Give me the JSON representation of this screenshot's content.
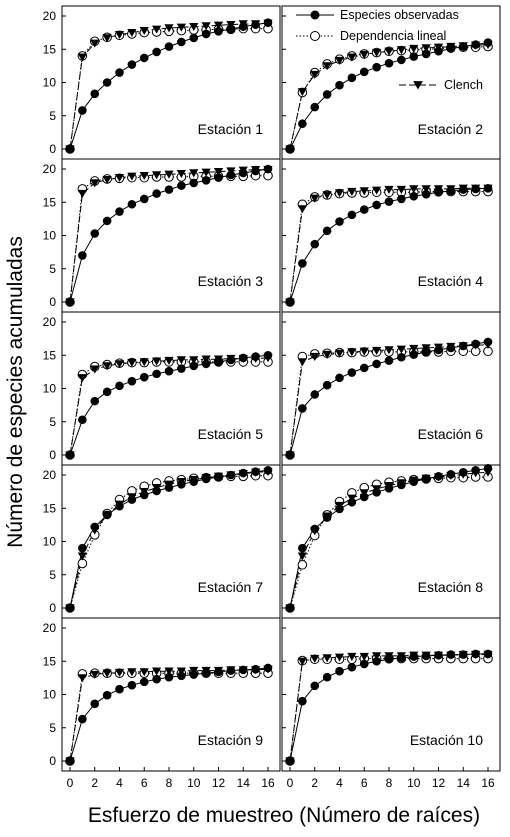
{
  "chart_data": {
    "type": "line",
    "xlabel": "Esfuerzo de muestreo (Número de raíces)",
    "ylabel": "Número de especies acumuladas",
    "xlim": [
      0,
      16
    ],
    "ylim": [
      0,
      20
    ],
    "xticks": [
      0,
      2,
      4,
      6,
      8,
      10,
      12,
      14,
      16
    ],
    "yticks": [
      0,
      5,
      10,
      15,
      20
    ],
    "x": [
      0,
      1,
      2,
      3,
      4,
      5,
      6,
      7,
      8,
      9,
      10,
      11,
      12,
      13,
      14,
      15,
      16
    ],
    "legend": {
      "placement": "top-right",
      "entries": [
        {
          "name": "Especies observadas",
          "marker": "filled-circle",
          "line": "solid"
        },
        {
          "name": "Dependencia lineal",
          "marker": "open-circle",
          "line": "dotted"
        },
        {
          "name": "Clench",
          "marker": "filled-triangle-down",
          "line": "dashed"
        }
      ]
    },
    "panels": [
      {
        "label": "Estación 1",
        "observed": [
          0,
          5.8,
          8.3,
          10.0,
          11.5,
          12.7,
          13.7,
          14.6,
          15.4,
          16.1,
          16.7,
          17.3,
          17.7,
          18.0,
          18.4,
          18.7,
          19.0
        ],
        "linear": [
          0,
          14.0,
          16.2,
          16.8,
          17.1,
          17.3,
          17.5,
          17.6,
          17.7,
          17.8,
          17.9,
          17.9,
          18.0,
          18.0,
          18.1,
          18.1,
          18.1
        ],
        "clench": [
          0,
          13.8,
          15.9,
          16.7,
          17.2,
          17.5,
          17.8,
          18.0,
          18.2,
          18.3,
          18.4,
          18.5,
          18.6,
          18.7,
          18.8,
          18.8,
          18.9
        ]
      },
      {
        "label": "Estación 2",
        "observed": [
          0,
          3.8,
          6.3,
          8.2,
          9.6,
          10.7,
          11.6,
          12.3,
          12.9,
          13.4,
          13.9,
          14.3,
          14.7,
          15.1,
          15.4,
          15.7,
          16.0
        ],
        "linear": [
          0,
          8.5,
          11.5,
          12.8,
          13.5,
          14.0,
          14.3,
          14.5,
          14.7,
          14.8,
          14.9,
          15.0,
          15.1,
          15.2,
          15.3,
          15.3,
          15.4
        ],
        "clench": [
          0,
          8.6,
          11.2,
          12.5,
          13.3,
          13.8,
          14.2,
          14.5,
          14.7,
          14.9,
          15.1,
          15.2,
          15.3,
          15.4,
          15.5,
          15.6,
          15.7
        ]
      },
      {
        "label": "Estación 3",
        "observed": [
          0,
          7.0,
          10.3,
          12.2,
          13.6,
          14.7,
          15.5,
          16.3,
          16.9,
          17.5,
          17.9,
          18.3,
          18.7,
          19.1,
          19.4,
          19.7,
          20.0
        ],
        "linear": [
          0,
          17.0,
          18.2,
          18.5,
          18.6,
          18.7,
          18.7,
          18.8,
          18.8,
          18.8,
          18.9,
          18.9,
          18.9,
          18.9,
          18.9,
          19.0,
          19.0
        ],
        "clench": [
          0,
          16.3,
          17.9,
          18.4,
          18.7,
          18.9,
          19.0,
          19.1,
          19.2,
          19.3,
          19.4,
          19.5,
          19.6,
          19.7,
          19.8,
          19.9,
          19.9
        ]
      },
      {
        "label": "Estación 4",
        "observed": [
          0,
          5.8,
          8.7,
          10.7,
          12.1,
          13.1,
          13.9,
          14.6,
          15.1,
          15.5,
          15.9,
          16.2,
          16.5,
          16.7,
          16.9,
          17.0,
          17.1
        ],
        "linear": [
          0,
          14.7,
          15.8,
          16.1,
          16.3,
          16.4,
          16.4,
          16.5,
          16.5,
          16.5,
          16.5,
          16.6,
          16.6,
          16.6,
          16.6,
          16.6,
          16.6
        ],
        "clench": [
          0,
          14.0,
          15.6,
          16.1,
          16.4,
          16.6,
          16.7,
          16.8,
          16.9,
          16.9,
          17.0,
          17.0,
          17.0,
          17.0,
          17.1,
          17.1,
          17.1
        ]
      },
      {
        "label": "Estación 5",
        "observed": [
          0,
          5.3,
          8.1,
          9.5,
          10.4,
          11.1,
          11.7,
          12.2,
          12.6,
          13.0,
          13.4,
          13.7,
          14.0,
          14.3,
          14.6,
          14.8,
          15.0
        ],
        "linear": [
          0,
          12.1,
          13.3,
          13.6,
          13.8,
          13.9,
          13.9,
          14.0,
          14.0,
          14.0,
          14.0,
          14.0,
          14.0,
          14.0,
          14.0,
          14.0,
          14.0
        ],
        "clench": [
          0,
          11.6,
          12.9,
          13.4,
          13.7,
          13.9,
          14.0,
          14.1,
          14.2,
          14.3,
          14.3,
          14.4,
          14.4,
          14.5,
          14.5,
          14.5,
          14.6
        ]
      },
      {
        "label": "Estación 6",
        "observed": [
          0,
          7.0,
          9.1,
          10.5,
          11.6,
          12.4,
          13.1,
          13.7,
          14.2,
          14.7,
          15.1,
          15.5,
          15.8,
          16.1,
          16.4,
          16.7,
          17.0
        ],
        "linear": [
          0,
          14.8,
          15.2,
          15.3,
          15.4,
          15.4,
          15.5,
          15.5,
          15.5,
          15.5,
          15.5,
          15.5,
          15.5,
          15.6,
          15.6,
          15.6,
          15.6
        ],
        "clench": [
          0,
          14.0,
          14.8,
          15.1,
          15.3,
          15.5,
          15.6,
          15.7,
          15.8,
          15.9,
          16.0,
          16.1,
          16.2,
          16.3,
          16.4,
          16.5,
          16.6
        ]
      },
      {
        "label": "Estación 7",
        "observed": [
          0,
          9.0,
          12.2,
          14.0,
          15.3,
          16.3,
          17.0,
          17.6,
          18.1,
          18.6,
          19.0,
          19.4,
          19.7,
          20.0,
          20.3,
          20.5,
          20.7
        ],
        "linear": [
          0,
          6.7,
          11.0,
          14.2,
          16.3,
          17.6,
          18.3,
          18.8,
          19.1,
          19.3,
          19.5,
          19.6,
          19.7,
          19.8,
          19.8,
          19.9,
          19.9
        ],
        "clench": [
          0,
          7.8,
          11.7,
          14.0,
          15.6,
          16.7,
          17.5,
          18.1,
          18.6,
          19.0,
          19.3,
          19.6,
          19.8,
          20.0,
          20.2,
          20.4,
          20.5
        ]
      },
      {
        "label": "Estación 8",
        "observed": [
          0,
          9.0,
          11.9,
          13.6,
          14.9,
          15.9,
          16.7,
          17.4,
          18.0,
          18.5,
          19.0,
          19.4,
          19.8,
          20.1,
          20.4,
          20.7,
          21.0
        ],
        "linear": [
          0,
          6.5,
          10.9,
          14.0,
          16.0,
          17.3,
          18.1,
          18.6,
          18.9,
          19.1,
          19.3,
          19.4,
          19.5,
          19.6,
          19.6,
          19.7,
          19.7
        ],
        "clench": [
          0,
          7.8,
          11.6,
          13.8,
          15.4,
          16.5,
          17.3,
          17.9,
          18.4,
          18.8,
          19.2,
          19.5,
          19.7,
          19.9,
          20.1,
          20.3,
          20.4
        ]
      },
      {
        "label": "Estación 9",
        "observed": [
          0,
          6.3,
          8.6,
          9.9,
          10.8,
          11.4,
          11.9,
          12.3,
          12.6,
          12.8,
          13.0,
          13.2,
          13.4,
          13.6,
          13.7,
          13.8,
          14.0
        ],
        "linear": [
          0,
          13.1,
          13.2,
          13.2,
          13.2,
          13.2,
          13.2,
          13.2,
          13.2,
          13.2,
          13.2,
          13.2,
          13.2,
          13.2,
          13.2,
          13.2,
          13.2
        ],
        "clench": [
          0,
          12.5,
          13.0,
          13.2,
          13.3,
          13.4,
          13.4,
          13.5,
          13.5,
          13.5,
          13.6,
          13.6,
          13.6,
          13.7,
          13.7,
          13.7,
          13.8
        ]
      },
      {
        "label": "Estación 10",
        "observed": [
          0,
          9.0,
          11.3,
          12.6,
          13.5,
          14.1,
          14.6,
          15.0,
          15.3,
          15.5,
          15.7,
          15.8,
          15.9,
          16.0,
          16.0,
          16.1,
          16.1
        ],
        "linear": [
          0,
          15.1,
          15.3,
          15.3,
          15.3,
          15.3,
          15.4,
          15.4,
          15.4,
          15.4,
          15.4,
          15.4,
          15.4,
          15.4,
          15.4,
          15.4,
          15.4
        ],
        "clench": [
          0,
          15.0,
          15.4,
          15.5,
          15.6,
          15.7,
          15.7,
          15.8,
          15.8,
          15.8,
          15.9,
          15.9,
          15.9,
          15.9,
          16.0,
          16.0,
          16.0
        ]
      }
    ]
  }
}
